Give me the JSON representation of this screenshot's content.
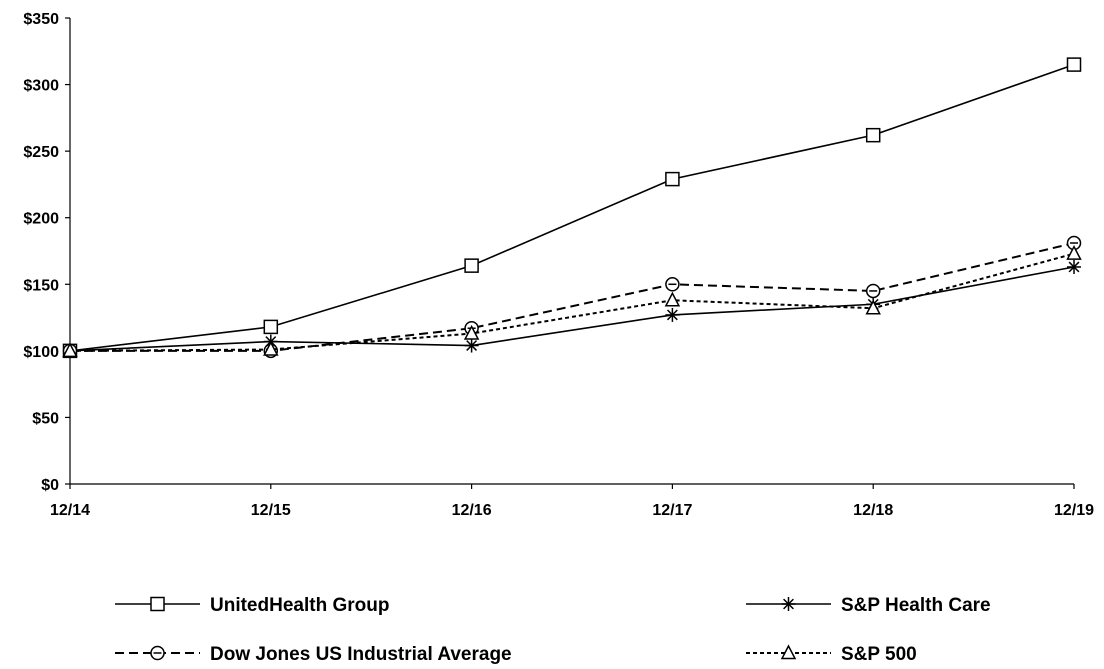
{
  "chart_data": {
    "type": "line",
    "title": "",
    "xlabel": "",
    "ylabel": "",
    "categories": [
      "12/14",
      "12/15",
      "12/16",
      "12/17",
      "12/18",
      "12/19"
    ],
    "y_ticks": [
      "$0",
      "$50",
      "$100",
      "$150",
      "$200",
      "$250",
      "$300",
      "$350"
    ],
    "ylim": [
      0,
      350
    ],
    "grid": false,
    "legend_position": "bottom",
    "series": [
      {
        "name": "UnitedHealth Group",
        "values": [
          100,
          118,
          164,
          229,
          262,
          315
        ],
        "marker": "square",
        "dash": "solid",
        "color": "#000000"
      },
      {
        "name": "S&P Health Care",
        "values": [
          100,
          107,
          104,
          127,
          135,
          163
        ],
        "marker": "asterisk",
        "dash": "solid",
        "color": "#000000"
      },
      {
        "name": "Dow Jones US Industrial Average",
        "values": [
          100,
          100,
          117,
          150,
          145,
          181
        ],
        "marker": "circle",
        "dash": "dashed",
        "color": "#000000"
      },
      {
        "name": "S&P 500",
        "values": [
          100,
          101,
          113,
          138,
          132,
          173
        ],
        "marker": "triangle",
        "dash": "dotted",
        "color": "#000000"
      }
    ]
  }
}
